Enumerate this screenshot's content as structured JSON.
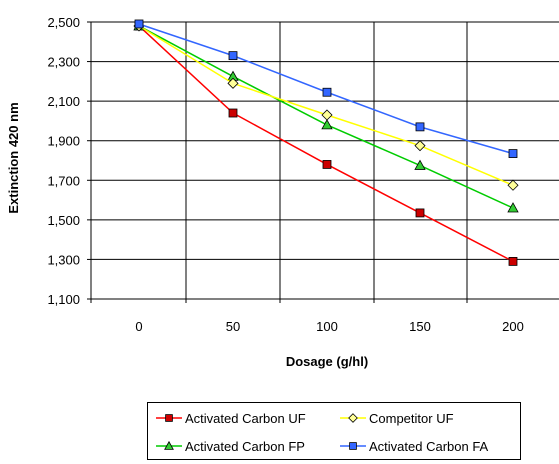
{
  "chart_data": {
    "type": "line",
    "title": "",
    "xlabel": "Dosage (g/hl)",
    "ylabel": "Extinction 420 nm",
    "x": [
      0,
      50,
      100,
      150,
      200
    ],
    "ylim": [
      1100,
      2500
    ],
    "yticks": [
      1100,
      1300,
      1500,
      1700,
      1900,
      2100,
      2300,
      2500
    ],
    "ytick_labels": [
      "1,100",
      "1,300",
      "1,500",
      "1,700",
      "1,900",
      "2,100",
      "2,300",
      "2,500"
    ],
    "xtick_labels": [
      "0",
      "50",
      "100",
      "150",
      "200"
    ],
    "grid": true,
    "legend_position": "bottom",
    "series": [
      {
        "name": "Activated Carbon UF",
        "color": "#ff0000",
        "fill": "#cc0000",
        "marker": "square",
        "values": [
          2480,
          2040,
          1780,
          1535,
          1290
        ]
      },
      {
        "name": "Competitor UF",
        "color": "#ffff00",
        "fill": "#ffff99",
        "marker": "diamond",
        "values": [
          2480,
          2190,
          2030,
          1875,
          1675
        ]
      },
      {
        "name": "Activated Carbon FP",
        "color": "#00cc00",
        "fill": "#33cc33",
        "marker": "triangle",
        "values": [
          2480,
          2225,
          1980,
          1775,
          1560
        ]
      },
      {
        "name": "Activated Carbon FA",
        "color": "#3366ff",
        "fill": "#3366ff",
        "marker": "square",
        "values": [
          2490,
          2330,
          2145,
          1970,
          1835
        ]
      }
    ]
  }
}
